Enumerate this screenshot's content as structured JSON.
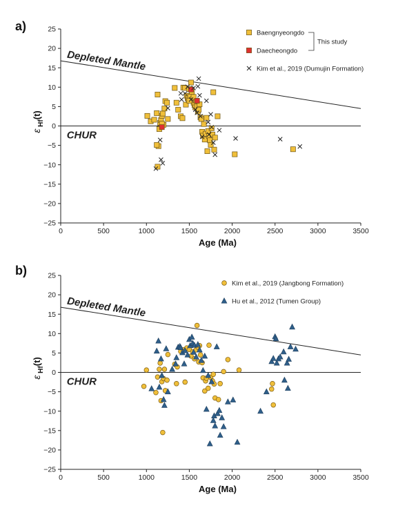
{
  "chart_data": [
    {
      "type": "scatter",
      "panel_label": "a)",
      "xlabel": "Age (Ma)",
      "ylabel_main": "ε",
      "ylabel_sub": "Hf",
      "ylabel_tail": "(t)",
      "xlim": [
        0,
        3500
      ],
      "ylim": [
        -25,
        25
      ],
      "xticks": [
        0,
        500,
        1000,
        1500,
        2000,
        2500,
        3000,
        3500
      ],
      "yticks": [
        -25,
        -20,
        -15,
        -10,
        -5,
        0,
        5,
        10,
        15,
        20,
        25
      ],
      "reference_lines": [
        {
          "label": "Depleted Mantle",
          "x": [
            0,
            3500
          ],
          "y": [
            16.8,
            4.5
          ]
        },
        {
          "label": "CHUR",
          "x": [
            0,
            3500
          ],
          "y": [
            0,
            0
          ]
        }
      ],
      "legend_position": "top-right",
      "legend_group_label": "This study",
      "series": [
        {
          "name": "Baengnyeongdo",
          "marker": "square",
          "color": "#f0bf3a",
          "points": [
            [
              1010,
              2.6
            ],
            [
              1050,
              1.2
            ],
            [
              1090,
              1.6
            ],
            [
              1120,
              3.3
            ],
            [
              1130,
              8.1
            ],
            [
              1140,
              -5.2
            ],
            [
              1150,
              -0.8
            ],
            [
              1160,
              0.8
            ],
            [
              1170,
              1.5
            ],
            [
              1180,
              2.6
            ],
            [
              1190,
              3.2
            ],
            [
              1200,
              0.3
            ],
            [
              1210,
              4.5
            ],
            [
              1220,
              6.4
            ],
            [
              1240,
              6.0
            ],
            [
              1250,
              1.8
            ],
            [
              1120,
              -4.9
            ],
            [
              1130,
              -10.5
            ],
            [
              1180,
              0.6
            ],
            [
              1330,
              9.8
            ],
            [
              1350,
              6.0
            ],
            [
              1370,
              4.2
            ],
            [
              1400,
              2.5
            ],
            [
              1420,
              2.0
            ],
            [
              1430,
              9.9
            ],
            [
              1450,
              9.8
            ],
            [
              1460,
              5.5
            ],
            [
              1470,
              7.8
            ],
            [
              1480,
              7.2
            ],
            [
              1490,
              6.8
            ],
            [
              1500,
              9.5
            ],
            [
              1510,
              7.6
            ],
            [
              1520,
              11.2
            ],
            [
              1530,
              8.8
            ],
            [
              1540,
              6.9
            ],
            [
              1550,
              6.0
            ],
            [
              1560,
              5.4
            ],
            [
              1570,
              4.8
            ],
            [
              1580,
              6.5
            ],
            [
              1590,
              5.0
            ],
            [
              1600,
              3.7
            ],
            [
              1610,
              4.2
            ],
            [
              1620,
              5.6
            ],
            [
              1630,
              2.2
            ],
            [
              1640,
              1.8
            ],
            [
              1650,
              -1.5
            ],
            [
              1660,
              -2.5
            ],
            [
              1670,
              0.5
            ],
            [
              1680,
              -3.5
            ],
            [
              1690,
              -2.0
            ],
            [
              1700,
              2.1
            ],
            [
              1710,
              -6.5
            ],
            [
              1720,
              -1.3
            ],
            [
              1730,
              -2.6
            ],
            [
              1740,
              -3.7
            ],
            [
              1750,
              -4.9
            ],
            [
              1760,
              -0.6
            ],
            [
              1770,
              -2.2
            ],
            [
              1780,
              8.7
            ],
            [
              1790,
              -6.1
            ],
            [
              1800,
              -3.0
            ],
            [
              1830,
              2.5
            ],
            [
              1550,
              7.5
            ],
            [
              1500,
              6.5
            ],
            [
              2030,
              -7.3
            ],
            [
              2710,
              -6.0
            ]
          ]
        },
        {
          "name": "Daecheongdo",
          "marker": "square",
          "color": "#e03030",
          "points": [
            [
              1180,
              -0.3
            ],
            [
              1520,
              9.4
            ],
            [
              1590,
              6.5
            ]
          ]
        },
        {
          "name": "Kim et al., 2019 (Dumujin Formation)",
          "marker": "x",
          "color": "#222222",
          "points": [
            [
              1110,
              -11.0
            ],
            [
              1160,
              -3.6
            ],
            [
              1170,
              -8.7
            ],
            [
              1190,
              -9.6
            ],
            [
              1250,
              4.6
            ],
            [
              1400,
              8.4
            ],
            [
              1410,
              6.8
            ],
            [
              1450,
              8.4
            ],
            [
              1480,
              10.1
            ],
            [
              1520,
              6.8
            ],
            [
              1550,
              9.8
            ],
            [
              1570,
              4.2
            ],
            [
              1590,
              3.4
            ],
            [
              1600,
              10.2
            ],
            [
              1610,
              12.2
            ],
            [
              1620,
              7.9
            ],
            [
              1630,
              2.5
            ],
            [
              1650,
              -2.8
            ],
            [
              1700,
              6.5
            ],
            [
              1720,
              1.0
            ],
            [
              1730,
              -2.2
            ],
            [
              1750,
              3.0
            ],
            [
              1760,
              -0.3
            ],
            [
              1780,
              -4.3
            ],
            [
              1800,
              -7.4
            ],
            [
              1850,
              -1.1
            ],
            [
              2040,
              -3.2
            ],
            [
              2560,
              -3.4
            ],
            [
              2790,
              -5.3
            ]
          ]
        }
      ]
    },
    {
      "type": "scatter",
      "panel_label": "b)",
      "xlabel": "Age (Ma)",
      "ylabel_main": "ε",
      "ylabel_sub": "Hf",
      "ylabel_tail": "(t)",
      "xlim": [
        0,
        3500
      ],
      "ylim": [
        -25,
        25
      ],
      "xticks": [
        0,
        500,
        1000,
        1500,
        2000,
        2500,
        3000,
        3500
      ],
      "yticks": [
        -25,
        -20,
        -15,
        -10,
        -5,
        0,
        5,
        10,
        15,
        20,
        25
      ],
      "reference_lines": [
        {
          "label": "Depleted Mantle",
          "x": [
            0,
            3500
          ],
          "y": [
            16.8,
            4.5
          ]
        },
        {
          "label": "CHUR",
          "x": [
            0,
            3500
          ],
          "y": [
            0,
            0
          ]
        }
      ],
      "legend_position": "top-right",
      "series": [
        {
          "name": "Kim et al., 2019 (Jangbong Formation)",
          "marker": "circle",
          "color": "#f0bf3a",
          "points": [
            [
              970,
              -3.6
            ],
            [
              1000,
              0.6
            ],
            [
              1110,
              -5.2
            ],
            [
              1130,
              -1.2
            ],
            [
              1150,
              0.8
            ],
            [
              1160,
              2.4
            ],
            [
              1170,
              -7.3
            ],
            [
              1180,
              -2.4
            ],
            [
              1190,
              -15.5
            ],
            [
              1200,
              -1.6
            ],
            [
              1210,
              0.8
            ],
            [
              1220,
              -4.7
            ],
            [
              1250,
              4.6
            ],
            [
              1330,
              2.1
            ],
            [
              1350,
              -2.9
            ],
            [
              1360,
              1.4
            ],
            [
              1400,
              5.4
            ],
            [
              1430,
              5.8
            ],
            [
              1450,
              -2.5
            ],
            [
              1470,
              6.3
            ],
            [
              1500,
              5.9
            ],
            [
              1520,
              4.2
            ],
            [
              1540,
              5.3
            ],
            [
              1560,
              3.5
            ],
            [
              1580,
              5.8
            ],
            [
              1590,
              12.1
            ],
            [
              1600,
              6.5
            ],
            [
              1610,
              2.7
            ],
            [
              1620,
              6.9
            ],
            [
              1630,
              4.5
            ],
            [
              1650,
              2.5
            ],
            [
              1660,
              -1.4
            ],
            [
              1680,
              -4.8
            ],
            [
              1690,
              -2.2
            ],
            [
              1700,
              -1.5
            ],
            [
              1720,
              -4.1
            ],
            [
              1750,
              -1.3
            ],
            [
              1770,
              -2.2
            ],
            [
              1780,
              -0.5
            ],
            [
              1790,
              -3.0
            ],
            [
              1800,
              -6.6
            ],
            [
              1840,
              -7.0
            ],
            [
              1860,
              -2.9
            ],
            [
              1900,
              0.2
            ],
            [
              1950,
              3.3
            ],
            [
              2080,
              0.6
            ],
            [
              2460,
              -4.3
            ],
            [
              2470,
              -2.9
            ],
            [
              2480,
              -8.4
            ],
            [
              1730,
              7.0
            ],
            [
              1240,
              -2.0
            ]
          ]
        },
        {
          "name": "Hu et al., 2012 (Tumen Group)",
          "marker": "triangle",
          "color": "#2f5f8a",
          "points": [
            [
              1060,
              -4.2
            ],
            [
              1140,
              8.1
            ],
            [
              1150,
              -3.8
            ],
            [
              1170,
              3.5
            ],
            [
              1180,
              -0.8
            ],
            [
              1200,
              -7.0
            ],
            [
              1210,
              -8.5
            ],
            [
              1230,
              6.1
            ],
            [
              1250,
              -5.0
            ],
            [
              1300,
              0.8
            ],
            [
              1340,
              2.2
            ],
            [
              1350,
              3.8
            ],
            [
              1370,
              6.5
            ],
            [
              1390,
              6.7
            ],
            [
              1400,
              6.4
            ],
            [
              1420,
              5.1
            ],
            [
              1450,
              5.6
            ],
            [
              1480,
              4.5
            ],
            [
              1500,
              8.5
            ],
            [
              1510,
              6.9
            ],
            [
              1530,
              9.1
            ],
            [
              1540,
              7.5
            ],
            [
              1550,
              5.2
            ],
            [
              1560,
              7.0
            ],
            [
              1580,
              4.0
            ],
            [
              1600,
              7.2
            ],
            [
              1620,
              5.8
            ],
            [
              1640,
              3.1
            ],
            [
              1660,
              0.5
            ],
            [
              1680,
              4.2
            ],
            [
              1700,
              -9.5
            ],
            [
              1720,
              -0.8
            ],
            [
              1740,
              -18.4
            ],
            [
              1760,
              -2.4
            ],
            [
              1780,
              -12.4
            ],
            [
              1790,
              -11.2
            ],
            [
              1800,
              -13.8
            ],
            [
              1820,
              6.6
            ],
            [
              1830,
              -10.6
            ],
            [
              1850,
              -9.8
            ],
            [
              1860,
              -16.2
            ],
            [
              1880,
              -11.7
            ],
            [
              1900,
              -14.0
            ],
            [
              1950,
              -7.6
            ],
            [
              2010,
              -7.1
            ],
            [
              2060,
              -18.0
            ],
            [
              2330,
              -10.0
            ],
            [
              2400,
              -5.0
            ],
            [
              2460,
              2.8
            ],
            [
              2480,
              3.6
            ],
            [
              2500,
              9.2
            ],
            [
              2510,
              8.7
            ],
            [
              2520,
              2.4
            ],
            [
              2540,
              3.5
            ],
            [
              2560,
              4.0
            ],
            [
              2600,
              5.3
            ],
            [
              2610,
              -2.0
            ],
            [
              2640,
              2.4
            ],
            [
              2650,
              -4.1
            ],
            [
              2660,
              3.4
            ],
            [
              2680,
              6.6
            ],
            [
              2700,
              11.7
            ],
            [
              2740,
              6.0
            ],
            [
              1120,
              5.5
            ],
            [
              1440,
              2.2
            ]
          ]
        }
      ]
    }
  ]
}
